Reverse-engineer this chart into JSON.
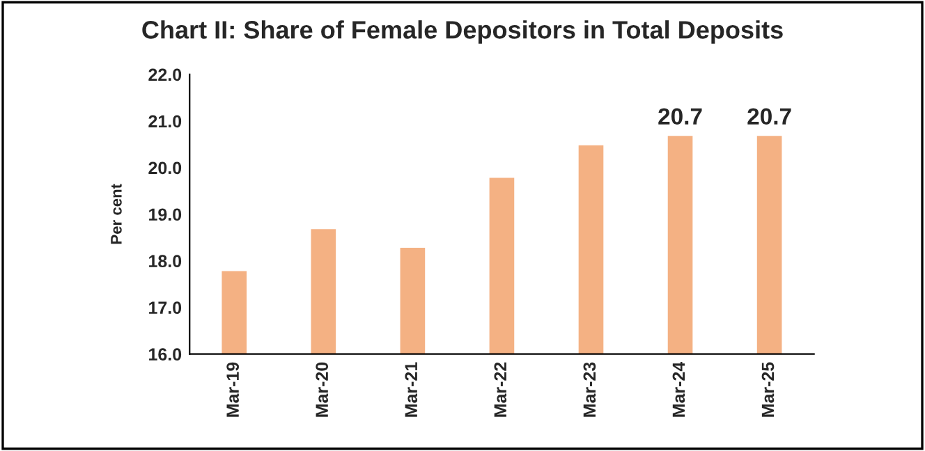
{
  "chart_data": {
    "type": "bar",
    "title": "Chart II: Share of Female Depositors in Total Deposits",
    "ylabel": "Per cent",
    "categories": [
      "Mar-19",
      "Mar-20",
      "Mar-21",
      "Mar-22",
      "Mar-23",
      "Mar-24",
      "Mar-25"
    ],
    "values": [
      17.8,
      18.7,
      18.3,
      19.8,
      20.5,
      20.7,
      20.7
    ],
    "value_labels": [
      null,
      null,
      null,
      null,
      null,
      "20.7",
      "20.7"
    ],
    "color": "#f4b183",
    "ylim": [
      16.0,
      22.0
    ],
    "yticks": [
      {
        "value": 16,
        "label": "16.0"
      },
      {
        "value": 17,
        "label": "17.0"
      },
      {
        "value": 18,
        "label": "18.0"
      },
      {
        "value": 19,
        "label": "19.0"
      },
      {
        "value": 20,
        "label": "20.0"
      },
      {
        "value": 21,
        "label": "21.0"
      },
      {
        "value": 22,
        "label": "22.0"
      }
    ],
    "grid": false,
    "legend": false
  }
}
